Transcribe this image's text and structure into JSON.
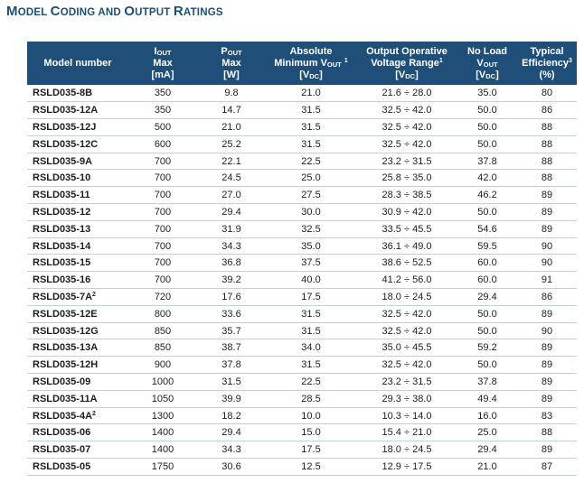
{
  "title": {
    "first_big": "M",
    "first_small": "ODEL ",
    "second_big": "C",
    "second_small": "ODING AND ",
    "third_big": "O",
    "third_small": "UTPUT ",
    "fourth_big": "R",
    "fourth_small": "ATINGS"
  },
  "header": {
    "model": "Model number",
    "iout": {
      "sym": "I",
      "sub": "OUT",
      "line2": "Max",
      "unit": "[mA]"
    },
    "pout": {
      "sym": "P",
      "sub": "OUT",
      "line2": "Max",
      "unit": "[W]"
    },
    "absmin": {
      "line1": "Absolute",
      "line2a": "Minimum V",
      "sub": "OUT",
      "sup": "1",
      "unit_a": "[V",
      "unit_sub": "DC",
      "unit_b": "]"
    },
    "range": {
      "line1": "Output Operative",
      "line2": "Voltage Range",
      "sup": "1",
      "unit_a": "[V",
      "unit_sub": "DC",
      "unit_b": "]"
    },
    "noload": {
      "line1": "No Load",
      "sym": "V",
      "sub": "OUT",
      "unit_a": "[V",
      "unit_sub": "DC",
      "unit_b": "]"
    },
    "eff": {
      "line1": "Typical",
      "line2": "Efficiency",
      "sup": "3",
      "unit": "(%)"
    }
  },
  "rows": [
    {
      "model": "RSLD035-8B",
      "sup": "",
      "iout": "350",
      "pout": "9.8",
      "vmin": "21.0",
      "range": "21.6 ÷ 28.0",
      "noload": "35.0",
      "eff": "80"
    },
    {
      "model": "RSLD035-12A",
      "sup": "",
      "iout": "350",
      "pout": "14.7",
      "vmin": "31.5",
      "range": "32.5 ÷ 42.0",
      "noload": "50.0",
      "eff": "86"
    },
    {
      "model": "RSLD035-12J",
      "sup": "",
      "iout": "500",
      "pout": "21.0",
      "vmin": "31.5",
      "range": "32.5 ÷ 42.0",
      "noload": "50.0",
      "eff": "88"
    },
    {
      "model": "RSLD035-12C",
      "sup": "",
      "iout": "600",
      "pout": "25.2",
      "vmin": "31.5",
      "range": "32.5 ÷ 42.0",
      "noload": "50.0",
      "eff": "88"
    },
    {
      "model": "RSLD035-9A",
      "sup": "",
      "iout": "700",
      "pout": "22.1",
      "vmin": "22.5",
      "range": "23.2 ÷ 31.5",
      "noload": "37.8",
      "eff": "88"
    },
    {
      "model": "RSLD035-10",
      "sup": "",
      "iout": "700",
      "pout": "24.5",
      "vmin": "25.0",
      "range": "25.8 ÷ 35.0",
      "noload": "42.0",
      "eff": "88"
    },
    {
      "model": "RSLD035-11",
      "sup": "",
      "iout": "700",
      "pout": "27.0",
      "vmin": "27.5",
      "range": "28.3 ÷ 38.5",
      "noload": "46.2",
      "eff": "89"
    },
    {
      "model": "RSLD035-12",
      "sup": "",
      "iout": "700",
      "pout": "29.4",
      "vmin": "30.0",
      "range": "30.9 ÷ 42.0",
      "noload": "50.0",
      "eff": "89"
    },
    {
      "model": "RSLD035-13",
      "sup": "",
      "iout": "700",
      "pout": "31.9",
      "vmin": "32.5",
      "range": "33.5 ÷ 45.5",
      "noload": "54.6",
      "eff": "89"
    },
    {
      "model": "RSLD035-14",
      "sup": "",
      "iout": "700",
      "pout": "34.3",
      "vmin": "35.0",
      "range": "36.1 ÷ 49.0",
      "noload": "59.5",
      "eff": "90"
    },
    {
      "model": "RSLD035-15",
      "sup": "",
      "iout": "700",
      "pout": "36.8",
      "vmin": "37.5",
      "range": "38.6 ÷ 52.5",
      "noload": "60.0",
      "eff": "90"
    },
    {
      "model": "RSLD035-16",
      "sup": "",
      "iout": "700",
      "pout": "39.2",
      "vmin": "40.0",
      "range": "41.2 ÷ 56.0",
      "noload": "60.0",
      "eff": "91"
    },
    {
      "model": "RSLD035-7A",
      "sup": "2",
      "iout": "720",
      "pout": "17.6",
      "vmin": "17.5",
      "range": "18.0 ÷ 24.5",
      "noload": "29.4",
      "eff": "86"
    },
    {
      "model": "RSLD035-12E",
      "sup": "",
      "iout": "800",
      "pout": "33.6",
      "vmin": "31.5",
      "range": "32.5 ÷ 42.0",
      "noload": "50.0",
      "eff": "89"
    },
    {
      "model": "RSLD035-12G",
      "sup": "",
      "iout": "850",
      "pout": "35.7",
      "vmin": "31.5",
      "range": "32.5 ÷ 42.0",
      "noload": "50.0",
      "eff": "90"
    },
    {
      "model": "RSLD035-13A",
      "sup": "",
      "iout": "850",
      "pout": "38.7",
      "vmin": "34.0",
      "range": "35.0 ÷ 45.5",
      "noload": "59.2",
      "eff": "89"
    },
    {
      "model": "RSLD035-12H",
      "sup": "",
      "iout": "900",
      "pout": "37.8",
      "vmin": "31.5",
      "range": "32.5 ÷ 42.0",
      "noload": "50.0",
      "eff": "89"
    },
    {
      "model": "RSLD035-09",
      "sup": "",
      "iout": "1000",
      "pout": "31.5",
      "vmin": "22.5",
      "range": "23.2 ÷ 31.5",
      "noload": "37.8",
      "eff": "89"
    },
    {
      "model": "RSLD035-11A",
      "sup": "",
      "iout": "1050",
      "pout": "39.9",
      "vmin": "28.5",
      "range": "29.3 ÷ 38.0",
      "noload": "49.4",
      "eff": "89"
    },
    {
      "model": "RSLD035-4A",
      "sup": "2",
      "iout": "1300",
      "pout": "18.2",
      "vmin": "10.0",
      "range": "10.3 ÷ 14.0",
      "noload": "16.0",
      "eff": "83"
    },
    {
      "model": "RSLD035-06",
      "sup": "",
      "iout": "1400",
      "pout": "29.4",
      "vmin": "15.0",
      "range": "15.4 ÷ 21.0",
      "noload": "25.0",
      "eff": "88"
    },
    {
      "model": "RSLD035-07",
      "sup": "",
      "iout": "1400",
      "pout": "34.3",
      "vmin": "17.5",
      "range": "18.0 ÷ 24.5",
      "noload": "29.4",
      "eff": "89"
    },
    {
      "model": "RSLD035-05",
      "sup": "",
      "iout": "1750",
      "pout": "30.6",
      "vmin": "12.5",
      "range": "12.9 ÷ 17.5",
      "noload": "21.0",
      "eff": "87"
    }
  ],
  "colors": {
    "title": "#1d4e79",
    "header_bg": "#1f4e79",
    "header_text": "#ffffff",
    "rule": "#c7ced6"
  }
}
